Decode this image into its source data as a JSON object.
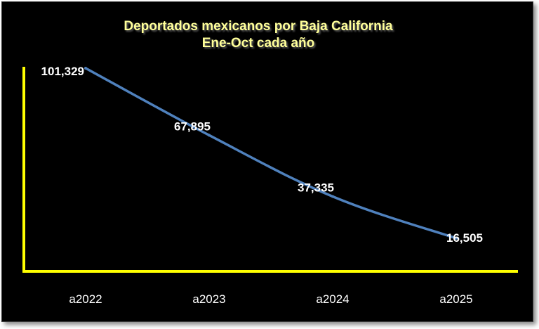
{
  "chart_data": {
    "type": "line",
    "title": "Deportados mexicanos por Baja California",
    "subtitle": "Ene-Oct cada año",
    "categories": [
      "a2022",
      "a2023",
      "a2024",
      "a2025"
    ],
    "values": [
      101329,
      67895,
      37335,
      16505
    ],
    "data_labels": [
      "101,329",
      "67,895",
      "37,335",
      "16,505"
    ],
    "ylim": [
      0,
      101329
    ],
    "grid": false,
    "legend": "none",
    "colors": {
      "background": "#000000",
      "line": "#4f81bd",
      "axis": "#ffff00",
      "title": "#ffff99",
      "labels": "#ffffff"
    }
  }
}
